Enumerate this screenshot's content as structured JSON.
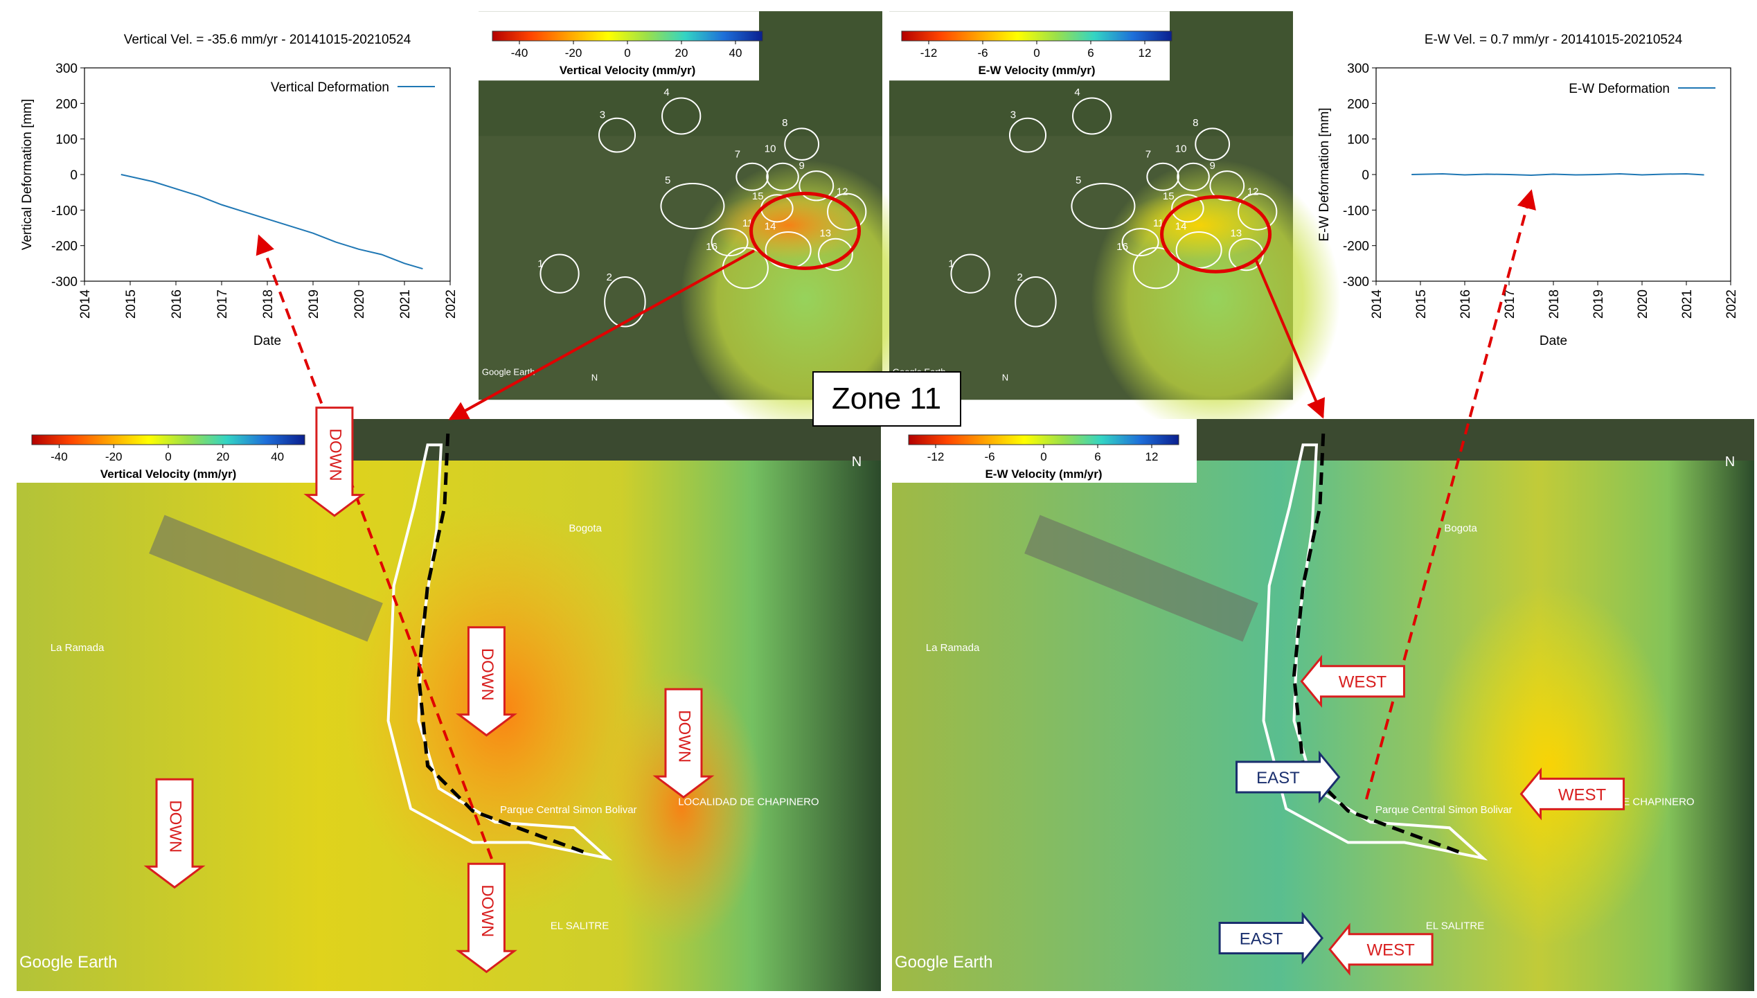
{
  "chart_data": [
    {
      "type": "line",
      "title": "Vertical Vel. = -35.6 mm/yr - 20141015-20210524",
      "x_label": "Date",
      "y_label": "Vertical Deformation [mm]",
      "x": [
        2014.8,
        2015.5,
        2016.0,
        2016.5,
        2017.0,
        2017.5,
        2018.0,
        2018.5,
        2019.0,
        2019.5,
        2020.0,
        2020.5,
        2021.0,
        2021.4
      ],
      "series": [
        {
          "name": "Vertical Deformation",
          "color": "#1f77b4",
          "values": [
            0,
            -20,
            -40,
            -60,
            -85,
            -105,
            -125,
            -145,
            -165,
            -190,
            -210,
            -225,
            -250,
            -265
          ]
        }
      ],
      "xlim": [
        2014,
        2022
      ],
      "xticks": [
        2014,
        2015,
        2016,
        2017,
        2018,
        2019,
        2020,
        2021,
        2022
      ],
      "ylim": [
        -300,
        300
      ],
      "yticks": [
        -300,
        -200,
        -100,
        0,
        100,
        200,
        300
      ],
      "grid": false
    },
    {
      "type": "line",
      "title": "E-W Vel. = 0.7 mm/yr - 20141015-20210524",
      "x_label": "Date",
      "y_label": "E-W Deformation [mm]",
      "x": [
        2014.8,
        2015.5,
        2016.0,
        2016.5,
        2017.0,
        2017.5,
        2018.0,
        2018.5,
        2019.0,
        2019.5,
        2020.0,
        2020.5,
        2021.0,
        2021.4
      ],
      "series": [
        {
          "name": "E-W Deformation",
          "color": "#1f77b4",
          "values": [
            0,
            2,
            -1,
            1,
            0,
            -2,
            1,
            -1,
            0,
            2,
            -1,
            1,
            2,
            -1
          ]
        }
      ],
      "xlim": [
        2014,
        2022
      ],
      "xticks": [
        2014,
        2015,
        2016,
        2017,
        2018,
        2019,
        2020,
        2021,
        2022
      ],
      "ylim": [
        -300,
        300
      ],
      "yticks": [
        -300,
        -200,
        -100,
        0,
        100,
        200,
        300
      ],
      "grid": false
    }
  ],
  "colorbars": [
    {
      "label": "Vertical Velocity (mm/yr)",
      "lim": [
        -50,
        50
      ],
      "ticks": [
        -40,
        -20,
        0,
        20,
        40
      ],
      "colors": [
        "#b30000",
        "#ff4500",
        "#ffa500",
        "#ffff00",
        "#9be04a",
        "#33d4c4",
        "#1e6fd9",
        "#0a1f8f"
      ]
    },
    {
      "label": "E-W Velocity (mm/yr)",
      "lim": [
        -15,
        15
      ],
      "ticks": [
        -12,
        -6,
        0,
        6,
        12
      ],
      "colors": [
        "#b30000",
        "#ff4500",
        "#ffa500",
        "#ffff00",
        "#9be04a",
        "#33d4c4",
        "#1e6fd9",
        "#0a1f8f"
      ]
    }
  ],
  "zone_label": "Zone 11",
  "zone_numbers": [
    "1",
    "2",
    "3",
    "4",
    "5",
    "7",
    "8",
    "9",
    "10",
    "11",
    "12",
    "13",
    "14",
    "15",
    "16"
  ],
  "arrow_labels": {
    "down": "DOWN",
    "west": "WEST",
    "east": "EAST"
  },
  "place_labels": [
    "Bogota",
    "La Ramada",
    "LOCALIDAD DE CHAPINERO",
    "Parque Central Simon Bolivar",
    "EL SALITRE"
  ],
  "attribution": "Google Earth",
  "north": "N"
}
